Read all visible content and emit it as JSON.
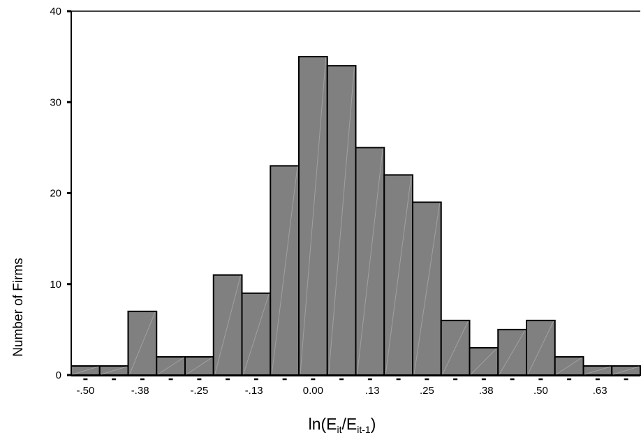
{
  "chart_data": {
    "type": "bar",
    "title": "",
    "ylabel": "Number of Firms",
    "xlabel": {
      "base": "ln(E",
      "sub1": "it",
      "mid": "/E",
      "sub2": "it-1",
      "end": ")"
    },
    "ylim": [
      0,
      40
    ],
    "yticks": [
      "0",
      "10",
      "20",
      "30",
      "40"
    ],
    "xticks": [
      "-.50",
      "-.38",
      "-.25",
      "-.13",
      "0.00",
      ".13",
      ".25",
      ".38",
      ".50",
      ".63"
    ],
    "bin_width": 0.0625,
    "bins_start": -0.53125,
    "values": [
      1,
      1,
      7,
      2,
      2,
      11,
      9,
      23,
      35,
      34,
      25,
      22,
      19,
      6,
      3,
      5,
      6,
      2,
      1,
      1
    ],
    "bar_color": "#808080",
    "grid": false
  }
}
